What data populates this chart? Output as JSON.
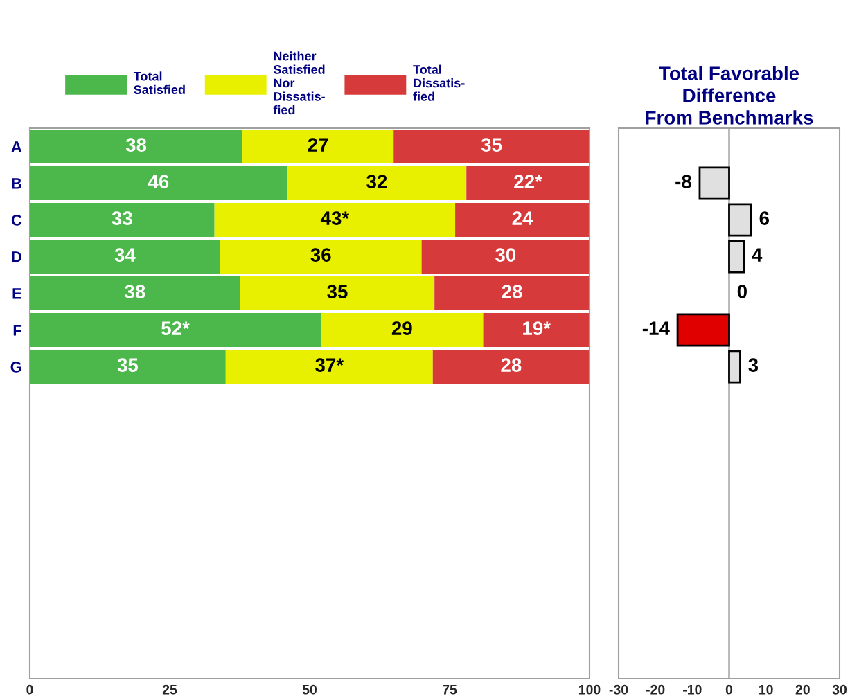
{
  "chart_data": [
    {
      "type": "bar",
      "orientation": "horizontal",
      "stacked": true,
      "categories": [
        "A",
        "B",
        "C",
        "D",
        "E",
        "F",
        "G",
        null,
        null,
        null,
        null,
        null,
        null,
        null,
        null
      ],
      "series": [
        {
          "name": "Total\nSatisfied",
          "color": "#4cb84c",
          "values": [
            38,
            46,
            33,
            34,
            37.6,
            52,
            35,
            null,
            null,
            null,
            null,
            null,
            null,
            null,
            null
          ],
          "value_labels": [
            "38",
            "46",
            "33",
            "34",
            "38",
            "52*",
            "35",
            null,
            null,
            null,
            null,
            null,
            null,
            null,
            null
          ]
        },
        {
          "name": "Neither\nSatisfied\nNor\nDissatis-\nfied",
          "color": "#e8f000",
          "values": [
            27,
            32,
            43,
            36,
            34.7,
            29,
            37,
            null,
            null,
            null,
            null,
            null,
            null,
            null,
            null
          ],
          "value_labels": [
            "27",
            "32",
            "43*",
            "36",
            "35",
            "29",
            "37*",
            null,
            null,
            null,
            null,
            null,
            null,
            null,
            null
          ]
        },
        {
          "name": "Total\nDissatis-\nfied",
          "color": "#d63a3a",
          "values": [
            35,
            22,
            24,
            30,
            27.7,
            19,
            28,
            null,
            null,
            null,
            null,
            null,
            null,
            null,
            null
          ],
          "value_labels": [
            "35",
            "22*",
            "24",
            "30",
            "28",
            "19*",
            "28",
            null,
            null,
            null,
            null,
            null,
            null,
            null,
            null
          ]
        }
      ],
      "xlim": [
        0,
        100
      ],
      "xticks": [
        0,
        25,
        50,
        75,
        100
      ],
      "grid": false,
      "legend": "top"
    },
    {
      "type": "bar",
      "orientation": "horizontal",
      "title": "Total Favorable\nDifference\nFrom Benchmarks",
      "categories": [
        null,
        null,
        null,
        null,
        null,
        null,
        null,
        null,
        null,
        null,
        null,
        null,
        null,
        null,
        null
      ],
      "values": [
        null,
        -8,
        6,
        4,
        0,
        -14,
        3,
        null,
        null,
        null,
        null,
        null,
        null,
        null,
        null
      ],
      "colors": [
        null,
        "#e0e0e0",
        "#e0e0e0",
        "#e0e0e0",
        "#e0e0e0",
        "#e00000",
        "#e0e0e0",
        null,
        null,
        null,
        null,
        null,
        null,
        null,
        null
      ],
      "data_labels": true,
      "xlim": [
        -30,
        30
      ],
      "xticks": [
        -30,
        -20,
        -10,
        0,
        10,
        20,
        30
      ],
      "grid": false,
      "tick_labels": "x",
      "ref_lines": [
        {
          "axis": "x",
          "value": 0,
          "color": "#808080"
        }
      ]
    }
  ]
}
